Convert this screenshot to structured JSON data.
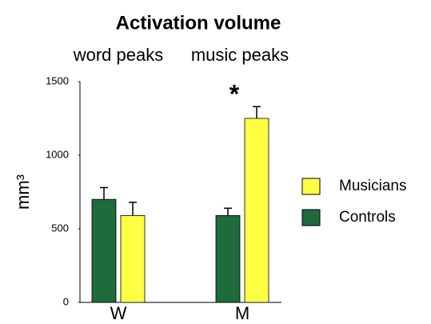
{
  "chart_data": {
    "type": "bar",
    "title": "Activation volume",
    "annotations": [
      "word peaks",
      "music peaks",
      "*"
    ],
    "ylabel": "mm³",
    "categories": [
      "W",
      "M"
    ],
    "series": [
      {
        "name": "Controls",
        "color": "#1e6b3c",
        "values": [
          700,
          590
        ],
        "errors": [
          80,
          50
        ]
      },
      {
        "name": "Musicians",
        "color": "#ffff44",
        "values": [
          590,
          1250
        ],
        "errors": [
          90,
          80
        ]
      }
    ],
    "ylim": [
      0,
      1500
    ],
    "yticks": [
      0,
      500,
      1000,
      1500
    ],
    "grid": false
  }
}
